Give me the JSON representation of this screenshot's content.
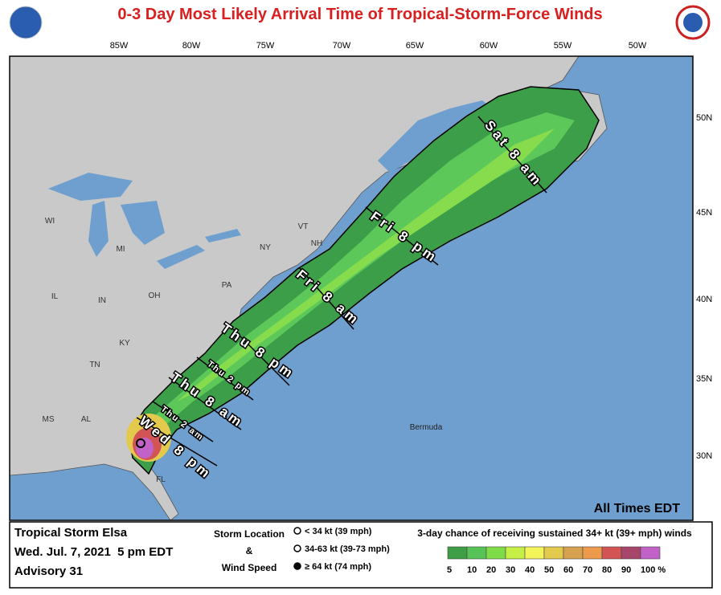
{
  "header": {
    "title": "0-3 Day Most Likely Arrival Time of Tropical-Storm-Force Winds"
  },
  "map": {
    "longitude_labels": [
      "85W",
      "80W",
      "75W",
      "70W",
      "65W",
      "60W",
      "55W",
      "50W"
    ],
    "latitude_labels": [
      "50N",
      "45N",
      "40N",
      "35N",
      "30N"
    ],
    "region_labels": [
      "WI",
      "MI",
      "IL",
      "IN",
      "OH",
      "PA",
      "NY",
      "VT",
      "NH",
      "KY",
      "TN",
      "MS",
      "AL",
      "FL"
    ],
    "place_labels": [
      "Bermuda"
    ],
    "time_labels": [
      "Sat 8 am",
      "Fri 8 pm",
      "Fri 8 am",
      "Thu 8 pm",
      "Thu 2 pm",
      "Thu 8 am",
      "Thu 2 am",
      "Wed 8 pm"
    ],
    "times_note": "All Times EDT"
  },
  "footer": {
    "storm": "Tropical Storm Elsa",
    "date": "Wed. Jul. 7, 2021  5 pm EDT",
    "advisory": "Advisory 31",
    "storm_location": "Storm Location",
    "ampersand": "&",
    "wind_speed": "Wind Speed",
    "symbols": [
      "< 34 kt (39 mph)",
      "34-63 kt (39-73 mph)",
      "≥ 64 kt (74 mph)"
    ],
    "scale_title": "3-day chance of receiving sustained 34+ kt (39+ mph) winds",
    "scale": [
      {
        "label": "5",
        "color": "#3f9e45"
      },
      {
        "label": "10",
        "color": "#56c356"
      },
      {
        "label": "20",
        "color": "#7fdc48"
      },
      {
        "label": "30",
        "color": "#c6ef45"
      },
      {
        "label": "40",
        "color": "#f3f35a"
      },
      {
        "label": "50",
        "color": "#e3c94c"
      },
      {
        "label": "60",
        "color": "#d6a24f"
      },
      {
        "label": "70",
        "color": "#ee9a4d"
      },
      {
        "label": "80",
        "color": "#d25454"
      },
      {
        "label": "90",
        "color": "#a8456a"
      },
      {
        "label": "100 %",
        "color": "#c062c8"
      }
    ]
  }
}
